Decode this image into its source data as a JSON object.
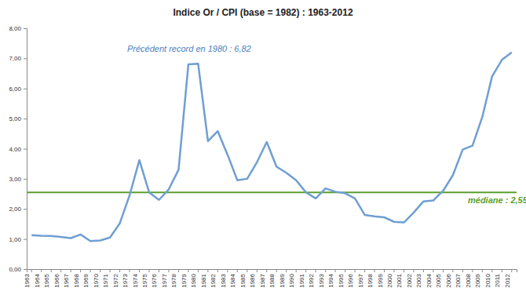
{
  "chart_data": {
    "type": "line",
    "title": "Indice Or / CPI (base = 1982) : 1963-2012",
    "categories": [
      "1963",
      "1964",
      "1965",
      "1966",
      "1967",
      "1968",
      "1969",
      "1970",
      "1971",
      "1972",
      "1973",
      "1974",
      "1975",
      "1976",
      "1977",
      "1978",
      "1979",
      "1980",
      "1981",
      "1982",
      "1983",
      "1984",
      "1985",
      "1986",
      "1987",
      "1988",
      "1989",
      "1990",
      "1991",
      "1992",
      "1993",
      "1994",
      "1995",
      "1996",
      "1997",
      "1998",
      "1999",
      "2000",
      "2001",
      "2002",
      "2003",
      "2004",
      "2005",
      "2006",
      "2007",
      "2008",
      "2009",
      "2010",
      "2011",
      "2012"
    ],
    "values": [
      1.13,
      1.11,
      1.1,
      1.07,
      1.03,
      1.15,
      0.93,
      0.95,
      1.05,
      1.52,
      2.45,
      3.62,
      2.55,
      2.3,
      2.65,
      3.3,
      6.8,
      6.82,
      4.25,
      4.58,
      3.8,
      2.95,
      3.0,
      3.55,
      4.22,
      3.4,
      3.2,
      2.95,
      2.55,
      2.35,
      2.68,
      2.57,
      2.52,
      2.35,
      1.8,
      1.75,
      1.72,
      1.57,
      1.55,
      1.88,
      2.25,
      2.28,
      2.6,
      3.12,
      3.97,
      4.1,
      5.05,
      6.4,
      6.95,
      7.2
    ],
    "color": "#6f9fd2",
    "ylim": [
      0,
      8
    ],
    "yticks": [
      {
        "value": 0,
        "label": "0,00"
      },
      {
        "value": 1,
        "label": "1,00"
      },
      {
        "value": 2,
        "label": "2,00"
      },
      {
        "value": 3,
        "label": "3,00"
      },
      {
        "value": 4,
        "label": "4,00"
      },
      {
        "value": 5,
        "label": "5,00"
      },
      {
        "value": 6,
        "label": "6,00"
      },
      {
        "value": 7,
        "label": "7,00"
      },
      {
        "value": 8,
        "label": "8,00"
      }
    ],
    "grid": false,
    "reference_line": {
      "value": 2.55,
      "label": "médiane : 2,55",
      "color": "#5aa02c"
    },
    "annotations": [
      {
        "text": "Précédent record en 1980 : 6,82",
        "color": "#4a7fc1"
      }
    ]
  }
}
